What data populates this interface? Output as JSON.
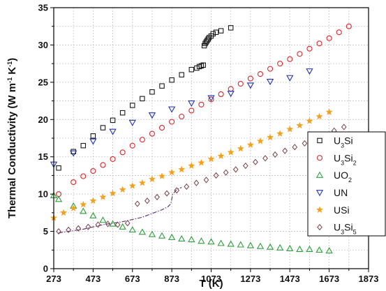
{
  "chart_data": {
    "type": "scatter",
    "title": "",
    "xlabel": "T (K)",
    "ylabel_parts": [
      "Thermal Conductivity (W m",
      "-1",
      " K",
      "-1",
      ")"
    ],
    "xlim": [
      273,
      1873
    ],
    "ylim": [
      0,
      35
    ],
    "xticks": [
      273,
      473,
      673,
      873,
      1073,
      1273,
      1473,
      1673,
      1873
    ],
    "yticks": [
      0,
      5,
      10,
      15,
      20,
      25,
      30,
      35
    ],
    "grid": true,
    "legend_position": "right",
    "series": [
      {
        "name": "U3Si",
        "label_parts": [
          "U",
          "3",
          "Si"
        ],
        "marker": "square",
        "color": "#1a1a1a",
        "x": [
          298,
          373,
          423,
          473,
          523,
          573,
          623,
          673,
          723,
          773,
          823,
          873,
          923,
          973,
          1000,
          1013,
          1023,
          1033,
          1038,
          1043,
          1048,
          1053,
          1058,
          1063,
          1073,
          1083,
          1098,
          1123,
          1173
        ],
        "y": [
          13.5,
          15.7,
          16.5,
          17.8,
          18.9,
          19.9,
          20.9,
          21.9,
          22.8,
          23.7,
          24.5,
          25.3,
          26.0,
          26.7,
          26.9,
          27.1,
          27.2,
          27.3,
          29.9,
          30.2,
          30.4,
          30.6,
          30.8,
          31.0,
          31.2,
          31.5,
          31.7,
          31.9,
          32.3
        ]
      },
      {
        "name": "U3Si2",
        "label_parts": [
          "U",
          "3",
          "Si",
          "2",
          ""
        ],
        "marker": "circle",
        "color": "#d9262c",
        "x": [
          298,
          373,
          423,
          473,
          523,
          573,
          623,
          673,
          723,
          773,
          823,
          873,
          923,
          973,
          1023,
          1073,
          1123,
          1173,
          1223,
          1273,
          1323,
          1373,
          1423,
          1473,
          1523,
          1573,
          1623,
          1673,
          1723,
          1773
        ],
        "y": [
          10.0,
          11.6,
          12.4,
          13.1,
          13.9,
          14.7,
          15.6,
          16.5,
          17.3,
          18.1,
          18.9,
          19.7,
          20.4,
          21.2,
          22.0,
          22.7,
          23.4,
          24.1,
          24.8,
          25.5,
          26.1,
          26.8,
          27.5,
          28.1,
          28.8,
          29.5,
          30.2,
          30.9,
          31.7,
          32.5
        ]
      },
      {
        "name": "UO2",
        "label_parts": [
          "UO",
          "2",
          ""
        ],
        "marker": "triangle-up",
        "color": "#2e9e3c",
        "x": [
          273,
          298,
          373,
          423,
          473,
          523,
          573,
          623,
          673,
          723,
          773,
          823,
          873,
          923,
          973,
          1023,
          1073,
          1123,
          1173,
          1223,
          1273,
          1323,
          1373,
          1423,
          1473,
          1523,
          1573,
          1623,
          1673
        ],
        "y": [
          9.8,
          9.3,
          8.4,
          7.7,
          7.1,
          6.5,
          6.0,
          5.6,
          5.2,
          4.9,
          4.6,
          4.4,
          4.2,
          4.0,
          3.9,
          3.7,
          3.6,
          3.4,
          3.3,
          3.2,
          3.1,
          3.0,
          2.9,
          2.8,
          2.7,
          2.6,
          2.6,
          2.5,
          2.4
        ]
      },
      {
        "name": "UN",
        "label_parts": [
          "UN"
        ],
        "marker": "triangle-down",
        "color": "#2233aa",
        "x": [
          273,
          373,
          473,
          573,
          673,
          773,
          873,
          973,
          1073,
          1173,
          1273,
          1373,
          1473,
          1573
        ],
        "y": [
          14.0,
          15.5,
          17.1,
          18.4,
          19.6,
          20.6,
          21.4,
          22.2,
          22.9,
          23.5,
          24.6,
          25.1,
          25.6,
          26.5
        ]
      },
      {
        "name": "USi",
        "label_parts": [
          "USi"
        ],
        "marker": "star",
        "color": "#f5a01a",
        "x": [
          273,
          323,
          373,
          423,
          473,
          523,
          573,
          623,
          673,
          723,
          773,
          823,
          873,
          923,
          973,
          1023,
          1073,
          1123,
          1173,
          1223,
          1273,
          1323,
          1373,
          1423,
          1473,
          1523,
          1573,
          1623,
          1673
        ],
        "y": [
          6.8,
          7.5,
          8.1,
          8.6,
          9.1,
          9.6,
          10.1,
          10.6,
          11.1,
          11.5,
          12.0,
          12.4,
          12.9,
          13.3,
          13.8,
          14.2,
          14.7,
          15.1,
          15.6,
          16.1,
          16.6,
          17.1,
          17.6,
          18.1,
          18.7,
          19.2,
          19.8,
          20.4,
          21.0
        ]
      },
      {
        "name": "U3Si5",
        "label_parts": [
          "U",
          "3",
          "Si",
          "5",
          ""
        ],
        "marker": "diamond",
        "color": "#7a3f48",
        "x": [
          298,
          348,
          398,
          448,
          498,
          548,
          598,
          648,
          698,
          748,
          798,
          848,
          898,
          948,
          998,
          1048,
          1098,
          1148,
          1198,
          1248,
          1298,
          1348,
          1398,
          1448,
          1498,
          1548,
          1598,
          1648,
          1698,
          1748
        ],
        "y": [
          5.0,
          5.2,
          5.4,
          5.6,
          5.9,
          6.0,
          5.9,
          6.1,
          8.7,
          9.1,
          9.6,
          10.1,
          10.5,
          11.0,
          11.5,
          11.9,
          12.5,
          12.9,
          13.3,
          13.8,
          14.3,
          14.8,
          15.3,
          15.8,
          16.3,
          16.8,
          17.4,
          17.9,
          18.5,
          19.0
        ]
      }
    ],
    "dashdot_line": {
      "color": "#5a2a6a",
      "x": [
        298,
        373,
        423,
        473,
        523,
        573,
        623,
        673,
        723,
        773,
        823,
        853,
        868,
        878,
        898,
        923
      ],
      "y": [
        4.8,
        5.1,
        5.3,
        5.6,
        5.9,
        6.1,
        6.3,
        6.6,
        6.9,
        7.4,
        7.9,
        8.3,
        8.7,
        10.0,
        10.6,
        10.9
      ]
    }
  }
}
